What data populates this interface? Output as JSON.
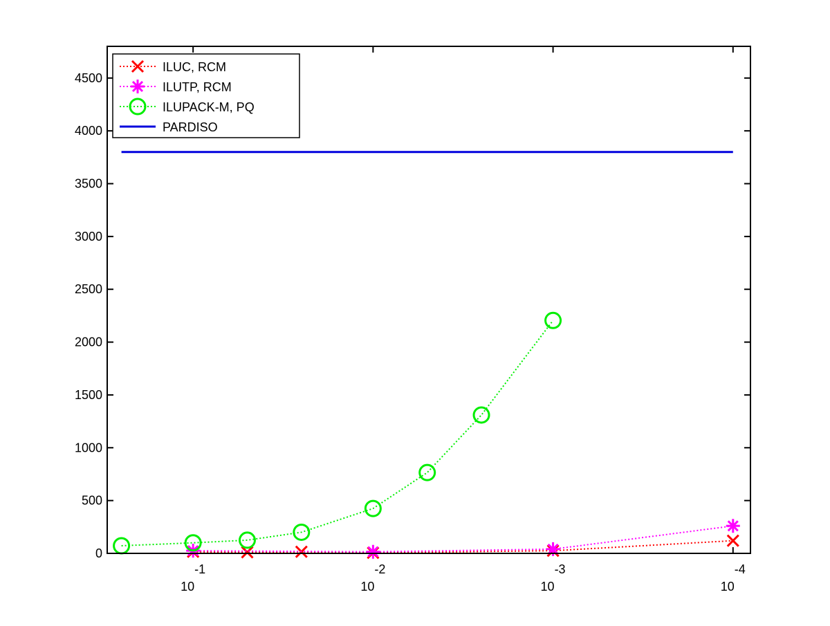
{
  "chart_data": {
    "type": "line",
    "xscale": "log",
    "xlim": [
      0.3,
      8e-05
    ],
    "xticks": [
      {
        "value": 0.1,
        "label": "10",
        "exponent": "-1"
      },
      {
        "value": 0.01,
        "label": "10",
        "exponent": "-2"
      },
      {
        "value": 0.001,
        "label": "10",
        "exponent": "-3"
      },
      {
        "value": 0.0001,
        "label": "10",
        "exponent": "-4"
      }
    ],
    "ylim": [
      0,
      4800
    ],
    "yticks": [
      0,
      500,
      1000,
      1500,
      2000,
      2500,
      3000,
      3500,
      4000,
      4500
    ],
    "legend": "upper left",
    "series": [
      {
        "name": "ILUC, RCM",
        "color": "#ff0000",
        "linestyle": "dotted",
        "marker": "x",
        "x": [
          0.1,
          0.05,
          0.025,
          0.01,
          0.001,
          0.0001
        ],
        "values": [
          15,
          10,
          15,
          5,
          25,
          120
        ]
      },
      {
        "name": "ILUTP, RCM",
        "color": "#ff00ff",
        "linestyle": "dotted",
        "marker": "*",
        "x": [
          0.1,
          0.01,
          0.001,
          0.0001
        ],
        "values": [
          25,
          15,
          40,
          260
        ]
      },
      {
        "name": "ILUPACK-M, PQ",
        "color": "#00ee00",
        "linestyle": "dotted",
        "marker": "o",
        "x": [
          0.25,
          0.1,
          0.05,
          0.025,
          0.01,
          0.005,
          0.0025,
          0.001
        ],
        "values": [
          72,
          100,
          125,
          200,
          425,
          765,
          1310,
          2205
        ]
      },
      {
        "name": "PARDISO",
        "color": "#0000dd",
        "linestyle": "solid",
        "marker": "none",
        "x": [
          0.25,
          0.0001
        ],
        "values": [
          3800,
          3800
        ]
      }
    ]
  }
}
